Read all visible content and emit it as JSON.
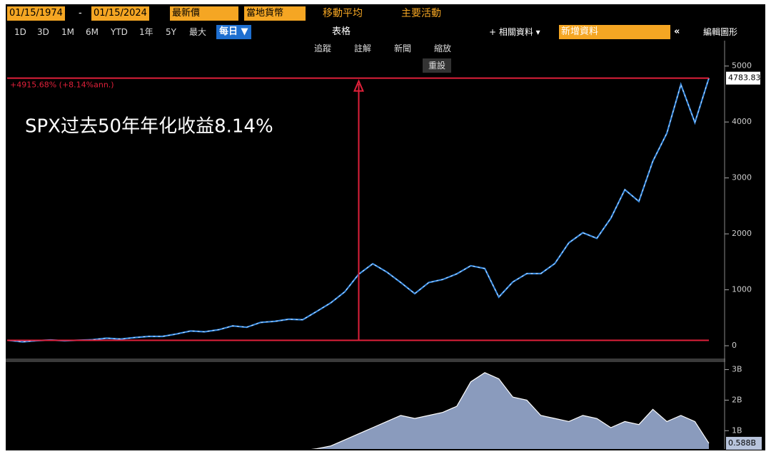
{
  "toolbar": {
    "start_date": "01/15/1974",
    "date_separator": "-",
    "end_date": "01/15/2024",
    "price_field": "最新價",
    "currency": "當地貨幣",
    "moving_avg": "移動平均",
    "key_events": "主要活動",
    "ranges": [
      "1D",
      "3D",
      "1M",
      "6M",
      "YTD",
      "1年",
      "5Y",
      "最大"
    ],
    "frequency": "每日 ▼",
    "table": "表格",
    "related": "+ 相關資料 ▾",
    "new_data": "新增資料",
    "collapse": "«",
    "edit_chart": "編輯圖形",
    "tools": [
      "追蹤",
      "註解",
      "新聞",
      "縮放"
    ],
    "reset": "重設"
  },
  "chart_data": [
    {
      "type": "line",
      "annotation": "SPX过去50年年化收益8.14%",
      "return_label": "+4915.68% (+8.14%ann.)",
      "last_value": 4783.83,
      "color": "#3a8ee6",
      "values": [
        97,
        70,
        90,
        103,
        89,
        99,
        108,
        135,
        120,
        146,
        167,
        167,
        211,
        264,
        250,
        286,
        355,
        330,
        417,
        436,
        474,
        465,
        614,
        766,
        963,
        1279,
        1465,
        1318,
        1130,
        931,
        1130,
        1185,
        1285,
        1430,
        1380,
        870,
        1140,
        1290,
        1290,
        1470,
        1840,
        2020,
        1920,
        2280,
        2790,
        2580,
        3300,
        3800,
        4670,
        3990,
        4783.83
      ],
      "ylim": [
        -190,
        5480
      ],
      "yticks": [
        0,
        1000,
        2000,
        3000,
        4000,
        5000
      ]
    },
    {
      "type": "area",
      "color": "#8a9bbd",
      "last_value": 0.588,
      "last_value_label": "0.588B",
      "values": [
        0.01,
        0.01,
        0.02,
        0.02,
        0.03,
        0.03,
        0.04,
        0.05,
        0.06,
        0.08,
        0.09,
        0.1,
        0.14,
        0.18,
        0.16,
        0.16,
        0.16,
        0.18,
        0.2,
        0.26,
        0.29,
        0.35,
        0.41,
        0.5,
        0.7,
        0.9,
        1.1,
        1.3,
        1.5,
        1.4,
        1.5,
        1.6,
        1.8,
        2.6,
        2.9,
        2.7,
        2.1,
        2.0,
        1.5,
        1.4,
        1.3,
        1.5,
        1.4,
        1.1,
        1.3,
        1.2,
        1.7,
        1.3,
        1.5,
        1.3,
        0.588
      ],
      "ylim": [
        0.4,
        3.2
      ],
      "yticks": [
        {
          "value": 1,
          "label": "1B"
        },
        {
          "value": 2,
          "label": "2B"
        },
        {
          "value": 3,
          "label": "3B"
        }
      ]
    }
  ]
}
